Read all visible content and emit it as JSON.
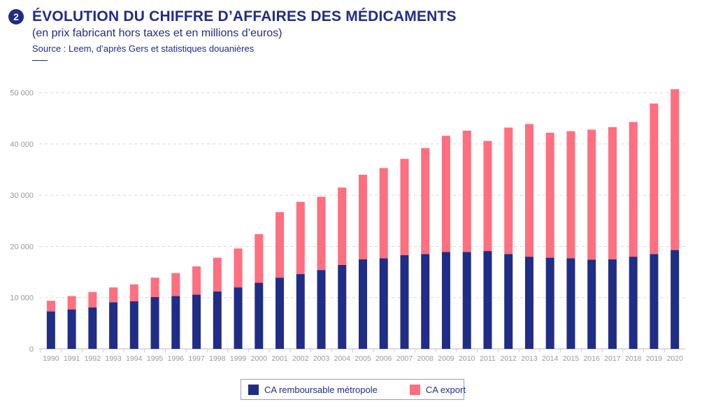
{
  "header": {
    "badge": "2",
    "title": "ÉVOLUTION DU CHIFFRE D’AFFAIRES DES MÉDICAMENTS",
    "subtitle": "(en prix fabricant hors taxes et en millions d’euros)",
    "source": "Source : Leem, d’après Gers et statistiques douanières"
  },
  "colors": {
    "brand": "#1f2d86",
    "series_domestic": "#1f2d86",
    "series_export": "#ff6f7f",
    "grid": "#d9d9d9",
    "tick": "#9a9a9a"
  },
  "chart_data": {
    "type": "bar",
    "stacked": true,
    "categories": [
      "1990",
      "1991",
      "1992",
      "1993",
      "1994",
      "1995",
      "1996",
      "1997",
      "1998",
      "1999",
      "2000",
      "2001",
      "2002",
      "2003",
      "2004",
      "2005",
      "2006",
      "2007",
      "2008",
      "2009",
      "2010",
      "2011",
      "2012",
      "2013",
      "2014",
      "2015",
      "2016",
      "2017",
      "2018",
      "2019",
      "2020"
    ],
    "series": [
      {
        "name": "CA remboursable métropole",
        "color": "#1f2d86",
        "values": [
          7300,
          7700,
          8100,
          9100,
          9300,
          10100,
          10300,
          10600,
          11200,
          12000,
          12900,
          13900,
          14600,
          15400,
          16400,
          17500,
          17700,
          18300,
          18500,
          18900,
          18900,
          19100,
          18500,
          18000,
          17800,
          17700,
          17400,
          17500,
          18000,
          18500,
          19300
        ]
      },
      {
        "name": "CA export",
        "color": "#ff6f7f",
        "values": [
          2100,
          2600,
          3000,
          2900,
          3300,
          3800,
          4500,
          5500,
          6600,
          7600,
          9500,
          12800,
          14100,
          14300,
          15100,
          16500,
          17600,
          18800,
          20700,
          22700,
          23700,
          21500,
          24700,
          25900,
          24400,
          24800,
          25400,
          25800,
          26300,
          29400,
          31400
        ]
      }
    ],
    "yticks": [
      0,
      10000,
      20000,
      30000,
      40000,
      50000
    ],
    "ytick_labels": [
      "0",
      "10 000",
      "20 000",
      "30 000",
      "40 000",
      "50 000"
    ],
    "ylim": [
      0,
      52000
    ],
    "grid": true,
    "legend_position": "bottom-center"
  },
  "legend": {
    "items": [
      {
        "label": "CA remboursable métropole",
        "color": "#1f2d86"
      },
      {
        "label": "CA export",
        "color": "#ff6f7f"
      }
    ]
  }
}
